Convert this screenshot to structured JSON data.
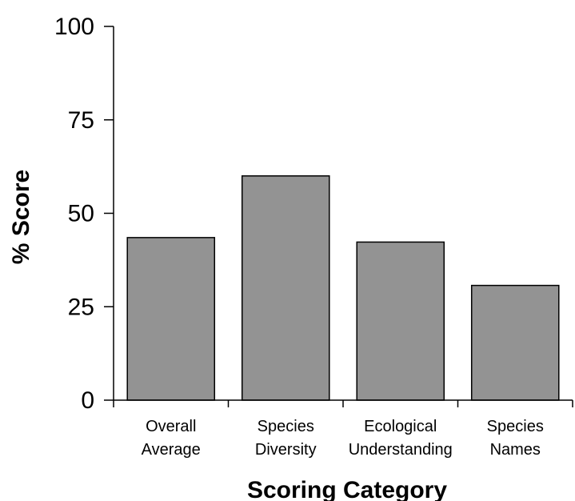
{
  "chart_data": {
    "type": "bar",
    "categories": [
      [
        "Overall",
        "Average"
      ],
      [
        "Species",
        "Diversity"
      ],
      [
        "Ecological",
        "Understanding"
      ],
      [
        "Species",
        "Names"
      ]
    ],
    "values": [
      43.5,
      60,
      42.3,
      30.7
    ],
    "xlabel": "Scoring Category",
    "ylabel": "% Score",
    "ylim": [
      0,
      100
    ],
    "yticks": [
      0,
      25,
      50,
      75,
      100
    ],
    "bar_color": "#939393",
    "grid": false,
    "legend": "none"
  }
}
